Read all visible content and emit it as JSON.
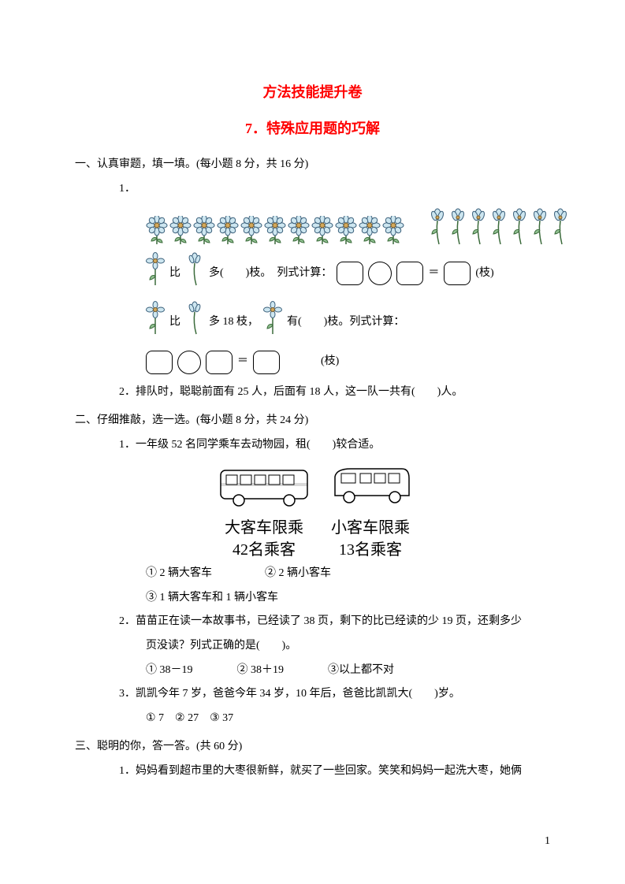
{
  "title1": {
    "text": "方法技能提升卷",
    "color": "#ff0000",
    "fontsize": 18
  },
  "title2": {
    "text": "7．特殊应用题的巧解",
    "color": "#ff0000",
    "fontsize": 18
  },
  "sec1": {
    "head": "一、认真审题，填一填。(每小题 8 分，共 16 分)",
    "q1": {
      "num": "1．",
      "flowerA_count": 11,
      "flowerB_count": 7,
      "line1_pre": "比",
      "line1_post": "多(　　)枝。　列式计算：",
      "line1_unit": "(枝)",
      "line2_pre": "比",
      "line2_mid": "多 18 枝，",
      "line2_post": "有(　　)枝。列式计算：",
      "line2_unit": "(枝)"
    },
    "q2": "2．排队时，聪聪前面有 25 人，后面有 18 人，这一队一共有(　　)人。"
  },
  "sec2": {
    "head": "二、仔细推敲，选一选。(每小题 8 分，共 24 分)",
    "q1": {
      "text": "1．一年级 52 名同学乘车去动物园，租(　　)较合适。",
      "busA": {
        "label1": "大客车限乘",
        "label2": "42名乘客"
      },
      "busB": {
        "label1": "小客车限乘",
        "label2": "13名乘客"
      },
      "opt1": "①  2 辆大客车",
      "opt2": "②  2 辆小客车",
      "opt3": "③  1 辆大客车和 1 辆小客车"
    },
    "q2": {
      "text": "2．苗苗正在读一本故事书，已经读了 38 页，剩下的比已经读的少 19 页，还剩多少",
      "cont": "页没读？列式正确的是(　　)。",
      "opts": "①  38－19　　　　②  38＋19　　　　③以上都不对"
    },
    "q3": {
      "text": "3．凯凯今年 7 岁，爸爸今年 34 岁，10 年后，爸爸比凯凯大(　　)岁。",
      "opts": "①  7　②  27　③  37"
    }
  },
  "sec3": {
    "head": "三、聪明的你，答一答。(共 60 分)",
    "q1": "1．妈妈看到超市里的大枣很新鲜，就买了一些回家。笑笑和妈妈一起洗大枣，她俩"
  },
  "page": "1",
  "colors": {
    "petal": "#cde6f0",
    "petal_stroke": "#3a5f7a",
    "center_fill": "#d4a85a",
    "stem": "#3a6a3a"
  }
}
